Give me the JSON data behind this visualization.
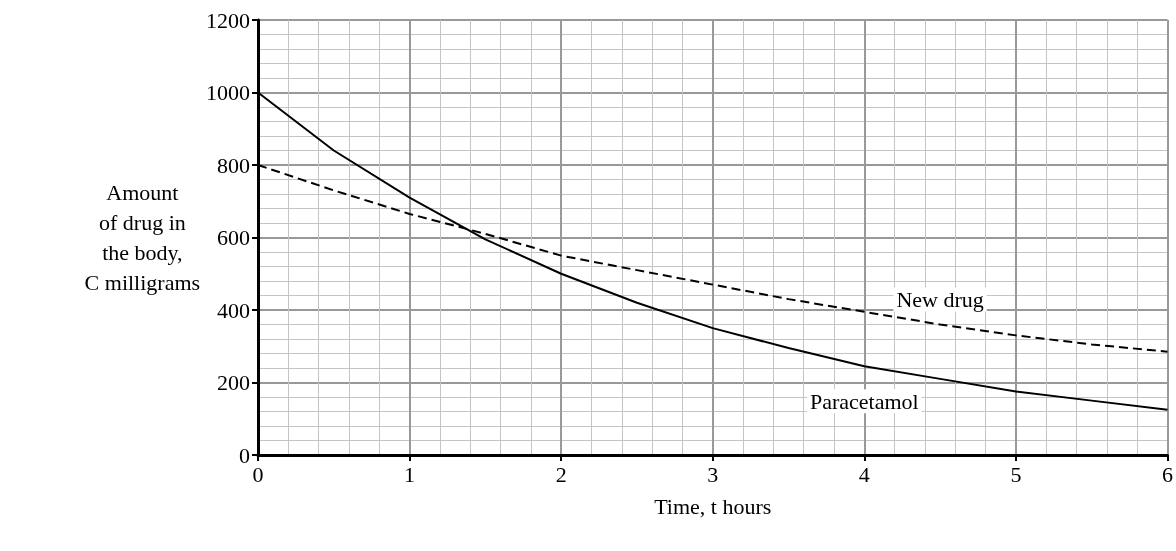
{
  "chart_data": {
    "type": "line",
    "xlabel": "Time, t hours",
    "ylabel": "Amount\nof drug in\nthe body,\nC milligrams",
    "x": [
      0,
      0.5,
      1,
      1.5,
      2,
      2.5,
      3,
      3.5,
      4,
      4.5,
      5,
      5.5,
      6
    ],
    "series": [
      {
        "name": "Paracetamol",
        "color": "#000000",
        "line_style": "solid",
        "values": [
          1000,
          840,
          710,
          595,
          500,
          420,
          350,
          295,
          245,
          210,
          175,
          150,
          125
        ]
      },
      {
        "name": "New drug",
        "color": "#000000",
        "line_style": "dashed",
        "values": [
          800,
          730,
          665,
          610,
          550,
          510,
          470,
          430,
          395,
          360,
          330,
          305,
          285
        ]
      }
    ],
    "xlim": [
      0,
      6
    ],
    "xticks": [
      0,
      1,
      2,
      3,
      4,
      5,
      6
    ],
    "ylim": [
      0,
      1200
    ],
    "yticks": [
      0,
      200,
      400,
      600,
      800,
      1000,
      1200
    ],
    "grid": true,
    "legend": false,
    "marker": "none"
  }
}
